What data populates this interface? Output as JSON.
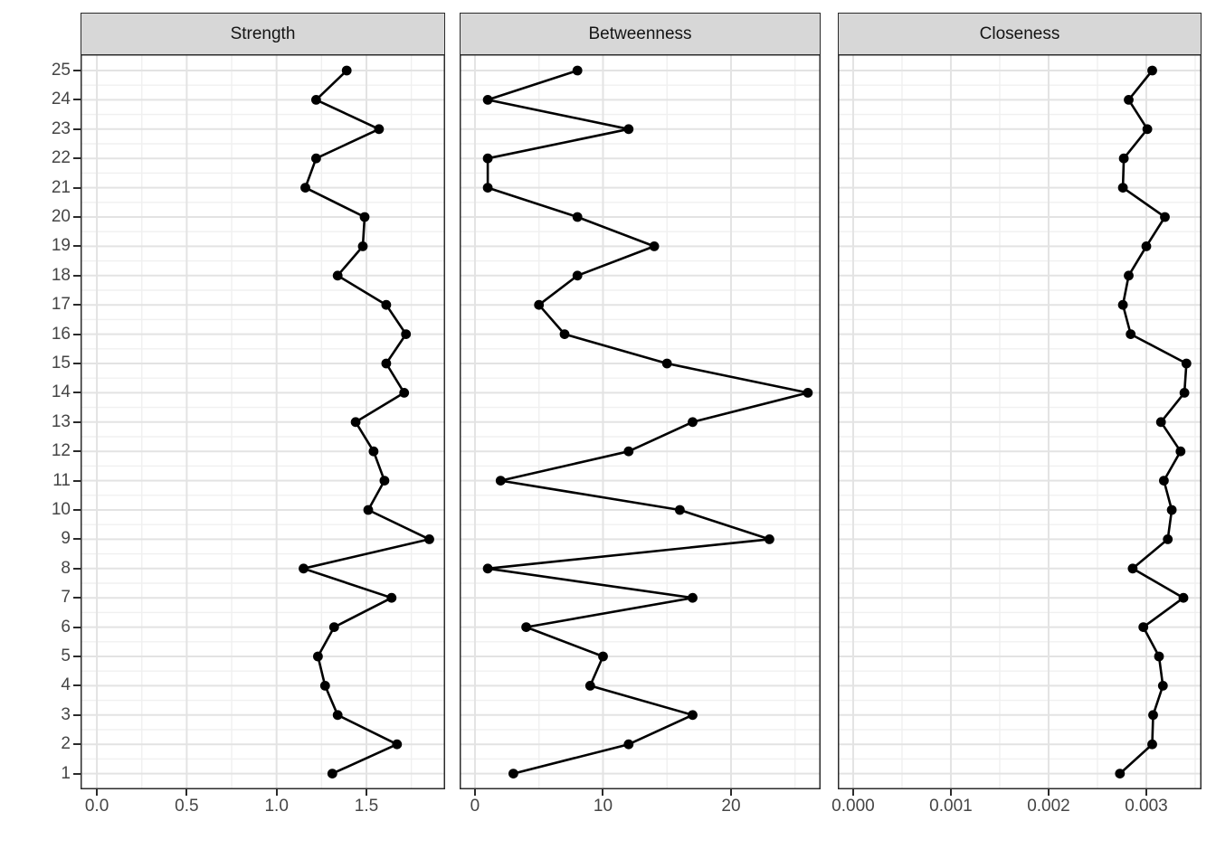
{
  "chart_data": {
    "type": "line",
    "title": "",
    "description": "Faceted centrality-by-node profile plot: three panels sharing a vertical node axis (1-25), points joined by line segments",
    "facets": [
      "Strength",
      "Betweenness",
      "Closeness"
    ],
    "y_axis": {
      "categories": [
        "1",
        "2",
        "3",
        "4",
        "5",
        "6",
        "7",
        "8",
        "9",
        "10",
        "11",
        "12",
        "13",
        "14",
        "15",
        "16",
        "17",
        "18",
        "19",
        "20",
        "21",
        "22",
        "23",
        "24",
        "25"
      ]
    },
    "series": [
      {
        "name": "Strength",
        "values": [
          1.31,
          1.67,
          1.34,
          1.27,
          1.23,
          1.32,
          1.64,
          1.15,
          1.85,
          1.51,
          1.6,
          1.54,
          1.44,
          1.71,
          1.61,
          1.72,
          1.61,
          1.34,
          1.48,
          1.49,
          1.16,
          1.22,
          1.57,
          1.22,
          1.39
        ]
      },
      {
        "name": "Betweenness",
        "values": [
          3,
          12,
          17,
          9,
          10,
          4,
          17,
          1,
          23,
          16,
          2,
          12,
          17,
          26,
          15,
          7,
          5,
          8,
          14,
          8,
          1,
          1,
          12,
          1,
          8
        ]
      },
      {
        "name": "Closeness",
        "values": [
          0.00273,
          0.00306,
          0.00307,
          0.00317,
          0.00313,
          0.00297,
          0.00338,
          0.00286,
          0.00322,
          0.00326,
          0.00318,
          0.00335,
          0.00315,
          0.00339,
          0.00341,
          0.00284,
          0.00276,
          0.00282,
          0.003,
          0.00319,
          0.00276,
          0.00277,
          0.00301,
          0.00282,
          0.00306
        ]
      }
    ],
    "x_axes": [
      {
        "facet": "Strength",
        "domain": [
          -0.091,
          1.938
        ],
        "major_ticks": [
          0,
          0.5,
          1.0,
          1.5
        ],
        "tick_labels": [
          "0.0",
          "0.5",
          "1.0",
          "1.5"
        ],
        "minor_step": 0.25
      },
      {
        "facet": "Betweenness",
        "domain": [
          -1.2,
          27.0
        ],
        "major_ticks": [
          0,
          10,
          20
        ],
        "tick_labels": [
          "0",
          "10",
          "20"
        ],
        "minor_step": 5
      },
      {
        "facet": "Closeness",
        "domain": [
          -0.000157,
          0.003565
        ],
        "major_ticks": [
          0,
          0.001,
          0.002,
          0.003
        ],
        "tick_labels": [
          "0.000",
          "0.001",
          "0.002",
          "0.003"
        ],
        "minor_step": 0.0005
      }
    ],
    "grid": "major and minor, both axes",
    "legend_position": "none"
  },
  "colors": {
    "background": "#ffffff",
    "strip_fill": "#d7d7d7",
    "strip_text": "#141414",
    "panel_border": "#2b2b2b",
    "grid_major": "#e3e3e3",
    "grid_minor": "#f0f0f0",
    "line": "#000000",
    "point": "#000000",
    "axis_text": "#454545",
    "tick_mark": "#2b2b2b"
  }
}
